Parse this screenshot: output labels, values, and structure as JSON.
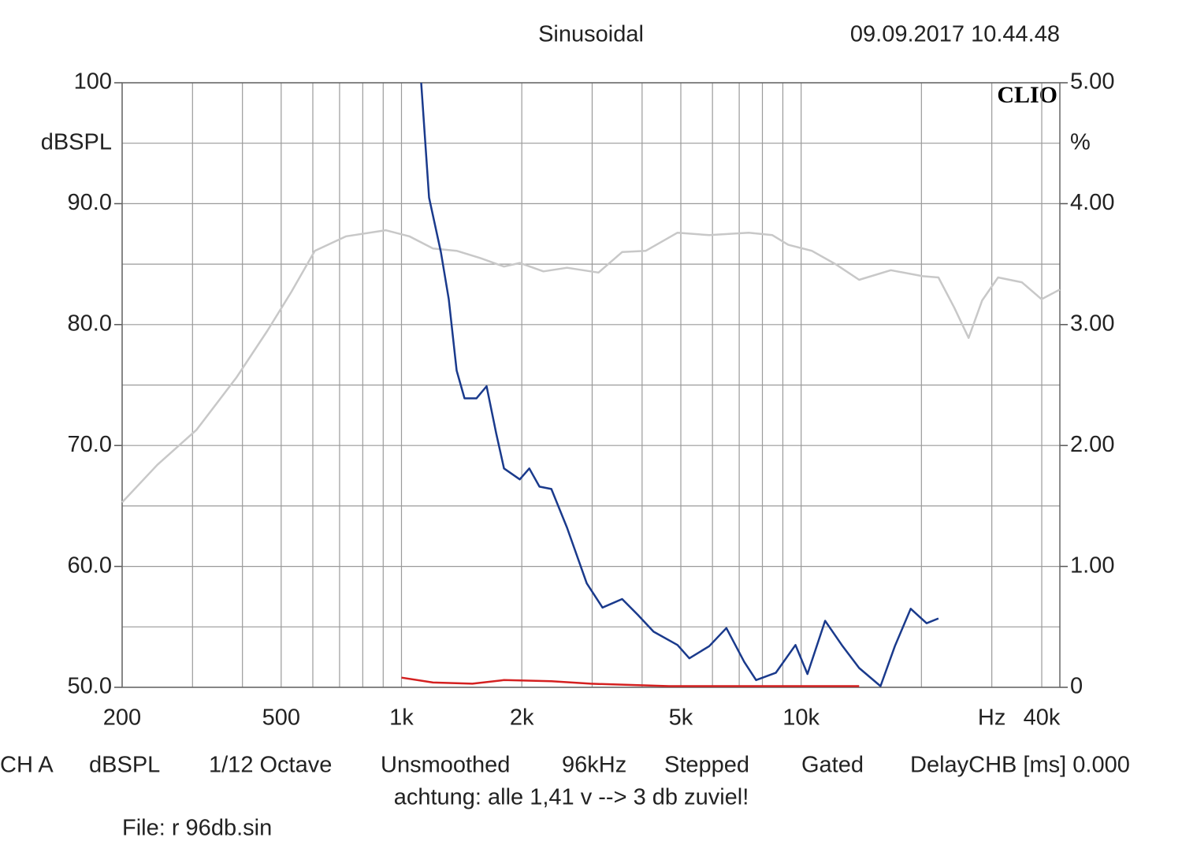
{
  "chart_data": {
    "type": "line",
    "title": "Sinusoidal",
    "timestamp": "09.09.2017 10.44.48",
    "brand": "CLIO",
    "y_label": "dBSPL",
    "y2_label": "%",
    "log_x": true,
    "grid": true,
    "xlim": [
      200,
      44400
    ],
    "xticks": [
      200,
      500,
      {
        "value": 1000,
        "label": "1k"
      },
      {
        "value": 2000,
        "label": "2k"
      },
      {
        "value": 5000,
        "label": "5k"
      },
      {
        "value": 10000,
        "label": "10k"
      },
      {
        "value": 30000,
        "label": "Hz"
      },
      {
        "value": 40000,
        "label": "40k"
      }
    ],
    "xminor_ticks": [
      300,
      400,
      600,
      700,
      800,
      900,
      3000,
      4000,
      6000,
      7000,
      8000,
      9000,
      20000
    ],
    "ylim": [
      50,
      100
    ],
    "yticks": [
      {
        "value": 50,
        "label": "50.0"
      },
      {
        "value": 60,
        "label": "60.0"
      },
      {
        "value": 70,
        "label": "70.0"
      },
      {
        "value": 80,
        "label": "80.0"
      },
      {
        "value": 90,
        "label": "90.0"
      },
      100
    ],
    "yminor_ticks": [
      55,
      65,
      75,
      85,
      95
    ],
    "y2lim": [
      0,
      5
    ],
    "y2ticks": [
      0,
      {
        "value": 1,
        "label": "1.00"
      },
      {
        "value": 2,
        "label": "2.00"
      },
      {
        "value": 3,
        "label": "3.00"
      },
      {
        "value": 4,
        "label": "4.00"
      },
      {
        "value": 5,
        "label": "5.00"
      }
    ],
    "series": [
      {
        "color": "#c8c8c8",
        "axis": "y",
        "x": [
          200,
          245,
          307,
          386,
          462,
          530,
          607,
          727,
          913,
          1046,
          1199,
          1374,
          1575,
          1805,
          1977,
          2265,
          2596,
          3111,
          3565,
          4085,
          4905,
          5889,
          7392,
          8472,
          9282,
          10636,
          12190,
          13969,
          16770,
          20140,
          22060,
          24160,
          26240,
          28380,
          31100,
          35650,
          39950,
          44400
        ],
        "values": [
          65.3,
          68.4,
          71.3,
          75.6,
          79.5,
          82.7,
          86.1,
          87.3,
          87.8,
          87.3,
          86.3,
          86.1,
          85.5,
          84.8,
          85.1,
          84.4,
          84.7,
          84.3,
          86.0,
          86.1,
          87.6,
          87.4,
          87.6,
          87.4,
          86.6,
          86.1,
          85.0,
          83.7,
          84.5,
          84.0,
          83.9,
          81.4,
          78.9,
          82.0,
          83.9,
          83.5,
          82.1,
          82.9
        ]
      },
      {
        "color": "#1a3a8c",
        "axis": "y2",
        "x": [
          1120,
          1172,
          1255,
          1313,
          1374,
          1438,
          1540,
          1633,
          1726,
          1805,
          1977,
          2088,
          2214,
          2371,
          2596,
          2908,
          3184,
          3565,
          3903,
          4274,
          4905,
          5251,
          5889,
          6501,
          7206,
          7715,
          8640,
          9680,
          10370,
          11480,
          12700,
          13970,
          15800,
          17160,
          18800,
          20600,
          22060
        ],
        "values": [
          5.0,
          4.05,
          3.6,
          3.21,
          2.62,
          2.39,
          2.39,
          2.49,
          2.1,
          1.81,
          1.72,
          1.81,
          1.66,
          1.64,
          1.32,
          0.86,
          0.66,
          0.73,
          0.6,
          0.46,
          0.35,
          0.24,
          0.34,
          0.49,
          0.21,
          0.06,
          0.12,
          0.35,
          0.11,
          0.55,
          0.34,
          0.16,
          0.01,
          0.34,
          0.65,
          0.53,
          0.57
        ]
      },
      {
        "color": "#d42020",
        "axis": "y2",
        "x": [
          1000,
          1199,
          1505,
          1805,
          2371,
          2975,
          4674,
          9282,
          13970
        ],
        "values": [
          0.08,
          0.04,
          0.03,
          0.06,
          0.05,
          0.03,
          0.01,
          0.01,
          0.01
        ]
      }
    ],
    "footer_items": [
      "CH A",
      "dBSPL",
      "1/12 Octave",
      "Unsmoothed",
      "96kHz",
      "Stepped",
      "Gated",
      "DelayCHB [ms] 0.000"
    ],
    "note": "achtung: alle 1,41 v --> 3 db zuviel!",
    "file": "File: r 96db.sin"
  }
}
